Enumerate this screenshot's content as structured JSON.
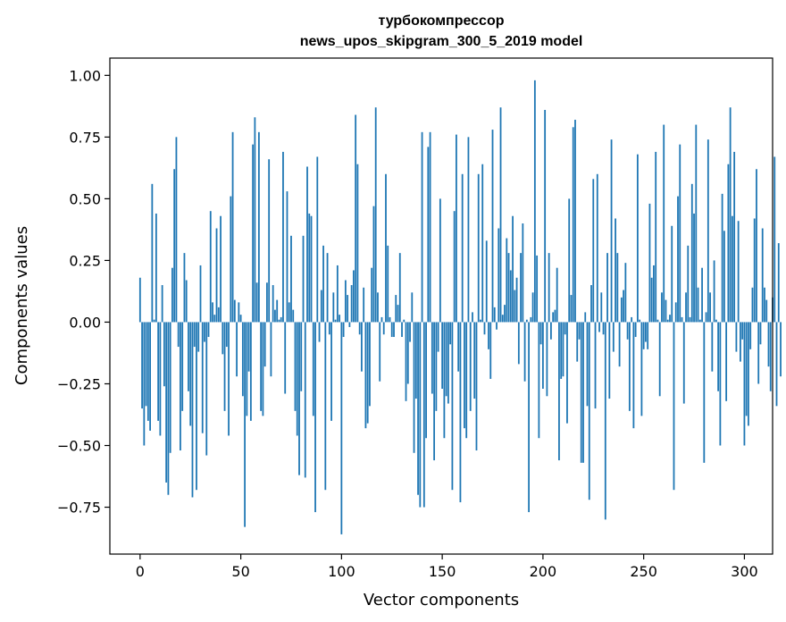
{
  "chart_data": {
    "type": "bar",
    "title": "турбокомпрессор",
    "subtitle": "news_upos_skipgram_300_5_2019 model",
    "xlabel": "Vector components",
    "ylabel": "Components values",
    "xlim": [
      -15,
      314
    ],
    "ylim": [
      -0.94,
      1.07
    ],
    "xticks": [
      0,
      50,
      100,
      150,
      200,
      250,
      300
    ],
    "xtick_labels": [
      "0",
      "50",
      "100",
      "150",
      "200",
      "250",
      "300"
    ],
    "yticks": [
      -0.75,
      -0.5,
      -0.25,
      0.0,
      0.25,
      0.5,
      0.75,
      1.0
    ],
    "ytick_labels": [
      "−0.75",
      "−0.50",
      "−0.25",
      "0.00",
      "0.25",
      "0.50",
      "0.75",
      "1.00"
    ],
    "bar_color": "#1f77b4",
    "values": [
      0.18,
      -0.35,
      -0.5,
      -0.34,
      -0.4,
      -0.44,
      0.56,
      0.01,
      0.44,
      -0.4,
      -0.46,
      0.15,
      -0.26,
      -0.65,
      -0.7,
      -0.53,
      0.22,
      0.62,
      0.75,
      -0.1,
      -0.52,
      -0.36,
      0.28,
      0.17,
      -0.28,
      -0.42,
      -0.71,
      -0.1,
      -0.68,
      -0.12,
      0.23,
      -0.45,
      -0.08,
      -0.54,
      -0.06,
      0.45,
      0.08,
      0.03,
      0.38,
      0.06,
      0.43,
      -0.13,
      -0.36,
      -0.1,
      -0.46,
      0.51,
      0.77,
      0.09,
      -0.22,
      0.08,
      0.03,
      -0.3,
      -0.83,
      -0.38,
      -0.2,
      -0.4,
      0.72,
      0.83,
      0.16,
      0.77,
      -0.36,
      -0.38,
      -0.18,
      0.16,
      0.66,
      -0.22,
      0.15,
      0.05,
      0.09,
      0.01,
      0.02,
      0.69,
      -0.29,
      0.53,
      0.08,
      0.35,
      0.05,
      -0.36,
      -0.46,
      -0.62,
      -0.28,
      0.35,
      -0.63,
      0.63,
      0.44,
      0.43,
      -0.38,
      -0.77,
      0.67,
      -0.08,
      0.13,
      0.31,
      -0.68,
      0.28,
      -0.05,
      -0.4,
      0.12,
      0.01,
      0.23,
      0.03,
      -0.86,
      -0.06,
      0.17,
      0.11,
      -0.02,
      0.15,
      0.21,
      0.84,
      0.64,
      -0.05,
      -0.2,
      0.14,
      -0.43,
      -0.41,
      -0.34,
      0.22,
      0.47,
      0.87,
      0.12,
      -0.24,
      0.02,
      -0.05,
      0.6,
      0.31,
      0.02,
      -0.06,
      -0.06,
      0.11,
      0.07,
      0.28,
      -0.06,
      0.01,
      -0.32,
      -0.25,
      -0.08,
      0.12,
      -0.53,
      -0.31,
      -0.7,
      -0.75,
      0.77,
      -0.75,
      -0.47,
      0.71,
      0.77,
      -0.29,
      -0.56,
      -0.36,
      -0.12,
      0.5,
      -0.27,
      -0.47,
      -0.3,
      -0.33,
      -0.09,
      -0.68,
      0.45,
      0.76,
      -0.2,
      -0.73,
      0.6,
      -0.43,
      -0.47,
      0.75,
      -0.36,
      0.04,
      -0.31,
      -0.52,
      0.6,
      0.01,
      0.64,
      -0.05,
      0.33,
      -0.11,
      -0.23,
      0.78,
      0.06,
      -0.03,
      0.38,
      0.87,
      0.03,
      0.07,
      0.34,
      0.28,
      0.21,
      0.43,
      0.13,
      0.18,
      -0.17,
      0.28,
      0.4,
      -0.24,
      0.01,
      -0.77,
      0.02,
      0.12,
      0.98,
      0.27,
      -0.47,
      -0.09,
      -0.27,
      0.86,
      -0.3,
      0.28,
      -0.07,
      0.04,
      0.05,
      0.22,
      -0.56,
      -0.23,
      -0.22,
      -0.05,
      -0.41,
      0.5,
      0.11,
      0.79,
      0.82,
      -0.16,
      -0.07,
      -0.57,
      -0.57,
      0.04,
      -0.34,
      -0.72,
      0.15,
      0.58,
      -0.35,
      0.6,
      -0.04,
      0.12,
      -0.05,
      -0.8,
      0.28,
      -0.31,
      0.74,
      -0.12,
      0.42,
      0.28,
      -0.18,
      0.1,
      0.13,
      0.24,
      -0.07,
      -0.36,
      0.02,
      -0.43,
      -0.06,
      0.68,
      0.01,
      -0.38,
      -0.11,
      -0.08,
      -0.11,
      0.48,
      0.18,
      0.23,
      0.69,
      0.01,
      -0.3,
      0.12,
      0.8,
      0.09,
      0.01,
      0.03,
      0.39,
      -0.68,
      0.08,
      0.51,
      0.72,
      0.02,
      -0.33,
      0.12,
      0.31,
      0.02,
      0.56,
      0.44,
      0.8,
      0.14,
      0.01,
      0.22,
      -0.57,
      0.04,
      0.74,
      0.12,
      -0.2,
      0.25,
      0.01,
      -0.28,
      -0.5,
      0.52,
      0.37,
      -0.32,
      0.64,
      0.87,
      0.43,
      0.69,
      -0.12,
      0.41,
      -0.16,
      -0.07,
      -0.5,
      -0.38,
      -0.42,
      -0.11,
      0.14,
      0.42,
      0.62,
      -0.25,
      -0.09,
      0.38,
      0.14,
      0.09,
      -0.18,
      -0.28,
      0.1,
      0.67,
      -0.34,
      0.32,
      -0.22
    ]
  }
}
